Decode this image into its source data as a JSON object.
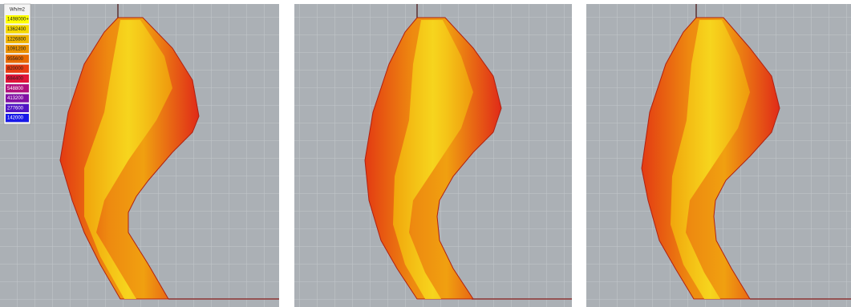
{
  "legend": {
    "title": "Wh/m2",
    "entries": [
      {
        "label": "1498000+",
        "color": "#ffff00"
      },
      {
        "label": "1362400",
        "color": "#f5d800"
      },
      {
        "label": "1226800",
        "color": "#f0b400"
      },
      {
        "label": "1091200",
        "color": "#ec9200"
      },
      {
        "label": "955600",
        "color": "#e86a00"
      },
      {
        "label": "820000",
        "color": "#e83c10"
      },
      {
        "label": "684400",
        "color": "#e01438"
      },
      {
        "label": "548800",
        "color": "#b0107c"
      },
      {
        "label": "413200",
        "color": "#8010a4"
      },
      {
        "label": "277600",
        "color": "#5014c4"
      },
      {
        "label": "142000",
        "color": "#1818e8"
      }
    ]
  }
}
